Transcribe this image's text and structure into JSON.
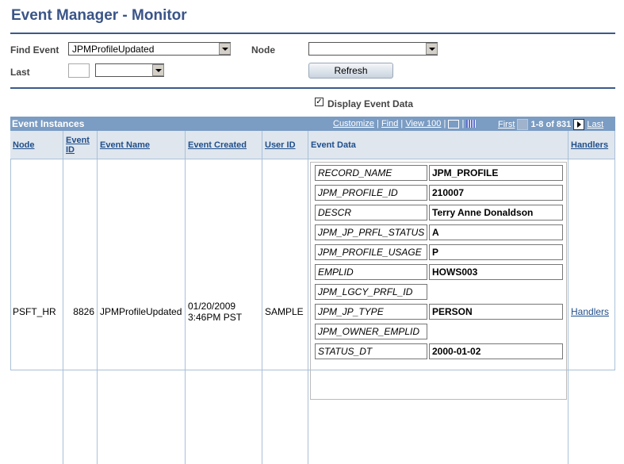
{
  "title": "Event Manager - Monitor",
  "filters": {
    "find_event_label": "Find Event",
    "find_event_value": "JPMProfileUpdated",
    "node_label": "Node",
    "node_value": "",
    "last_label": "Last",
    "last_value": "",
    "last_unit": "",
    "refresh": "Refresh",
    "display_event_data": "Display Event Data",
    "display_event_data_checked": true
  },
  "grid": {
    "title": "Event Instances",
    "customize": "Customize",
    "find": "Find",
    "view": "View 100",
    "first": "First",
    "range": "1-8 of 831",
    "last": "Last",
    "columns": [
      "Node",
      "Event ID",
      "Event Name",
      "Event Created",
      "User ID",
      "Event Data",
      "Handlers"
    ],
    "row": {
      "node": "PSFT_HR",
      "event_id": "8826",
      "event_name": "JPMProfileUpdated",
      "created_date": "01/20/2009",
      "created_time": "3:46PM PST",
      "user_id": "SAMPLE",
      "handlers": "Handlers"
    },
    "fields": [
      {
        "name": "RECORD_NAME",
        "value": "JPM_PROFILE"
      },
      {
        "name": "JPM_PROFILE_ID",
        "value": "210007"
      },
      {
        "name": "DESCR",
        "value": "Terry Anne Donaldson"
      },
      {
        "name": "JPM_JP_PRFL_STATUS",
        "value": "A"
      },
      {
        "name": "JPM_PROFILE_USAGE",
        "value": "P"
      },
      {
        "name": "EMPLID",
        "value": "HOWS003"
      },
      {
        "name": "JPM_LGCY_PRFL_ID",
        "value": null
      },
      {
        "name": "JPM_JP_TYPE",
        "value": "PERSON"
      },
      {
        "name": "JPM_OWNER_EMPLID",
        "value": null
      },
      {
        "name": "STATUS_DT",
        "value": "2000-01-02"
      }
    ]
  }
}
